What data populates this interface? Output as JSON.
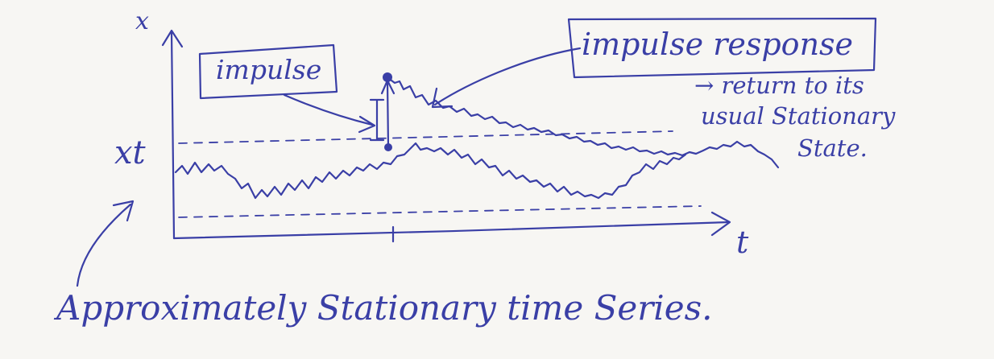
{
  "colors": {
    "ink": "#3a3fa6",
    "paper": "#f7f6f3"
  },
  "labels": {
    "y_axis": "x",
    "series_symbol": "xt",
    "x_axis": "t",
    "impulse": "impulse",
    "impulse_response": "impulse response",
    "return_note_line1": "→ return to its",
    "return_note_line2": "usual Stationary",
    "return_note_line3": "State.",
    "caption": "Approximately Stationary time Series."
  }
}
